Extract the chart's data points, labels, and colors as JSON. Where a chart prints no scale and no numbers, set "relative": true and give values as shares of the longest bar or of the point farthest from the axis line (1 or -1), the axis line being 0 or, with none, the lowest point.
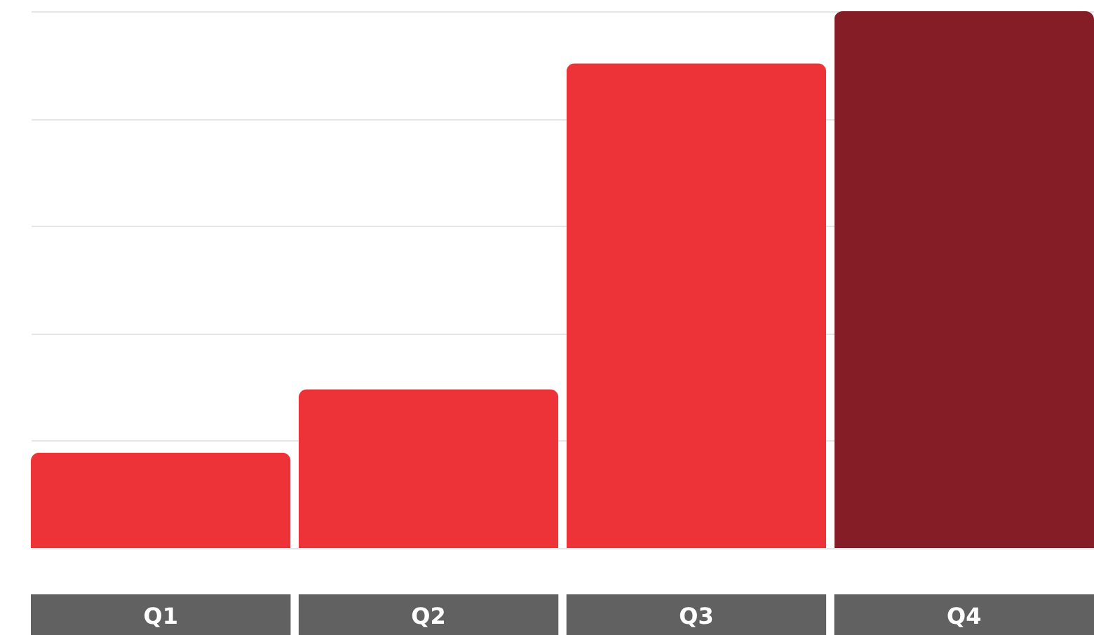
{
  "chart_data": {
    "type": "bar",
    "relative": true,
    "grid": true,
    "categories": [
      "Q1",
      "Q2",
      "Q3",
      "Q4"
    ],
    "values": [
      0.178,
      0.296,
      0.903,
      1
    ],
    "colors": [
      "#ee3338",
      "#ee3338",
      "#ee3338",
      "#841d26"
    ]
  }
}
